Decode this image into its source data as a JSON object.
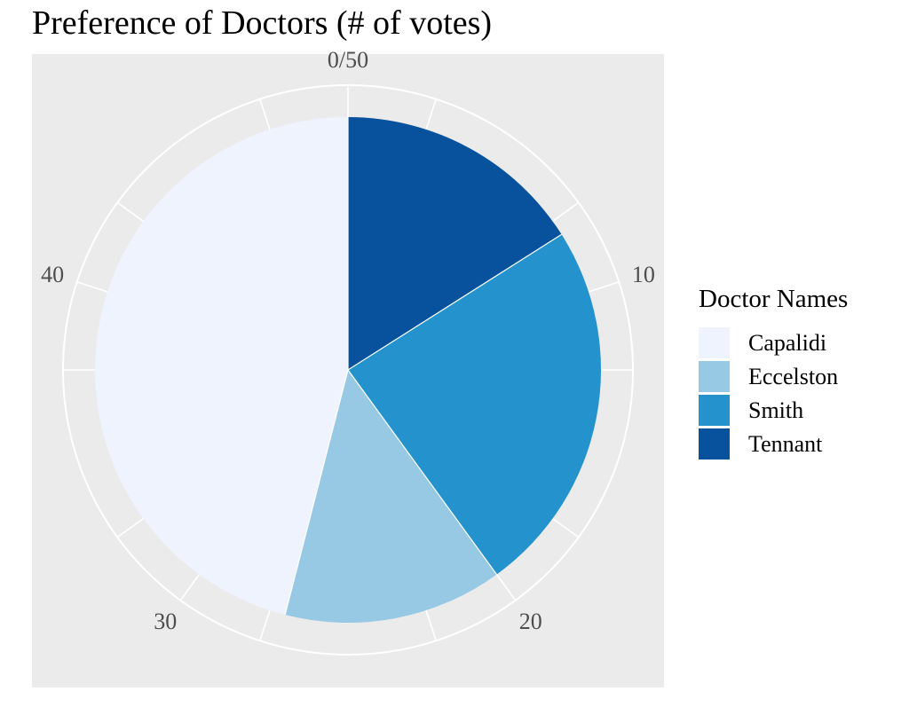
{
  "chart_data": {
    "type": "pie",
    "title": "Preference of Doctors (# of votes)",
    "total": 50,
    "legend_title": "Doctor Names",
    "legend_position": "right",
    "axis_ticks": [
      "0/50",
      "10",
      "20",
      "30",
      "40"
    ],
    "tick_values": [
      0,
      10,
      20,
      30,
      40
    ],
    "slices": [
      {
        "name": "Tennant",
        "value": 8,
        "color": "#08519C"
      },
      {
        "name": "Smith",
        "value": 12,
        "color": "#2392CD"
      },
      {
        "name": "Eccelston",
        "value": 7,
        "color": "#97C9E4"
      },
      {
        "name": "Capalidi",
        "value": 23,
        "color": "#EFF3FE"
      }
    ],
    "legend_items": [
      {
        "name": "Capalidi",
        "color": "#EFF3FE"
      },
      {
        "name": "Eccelston",
        "color": "#97C9E4"
      },
      {
        "name": "Smith",
        "color": "#2392CD"
      },
      {
        "name": "Tennant",
        "color": "#08519C"
      }
    ],
    "panel_background": "#EBEBEB",
    "grid": true,
    "grid_color": "#FFFFFF"
  }
}
